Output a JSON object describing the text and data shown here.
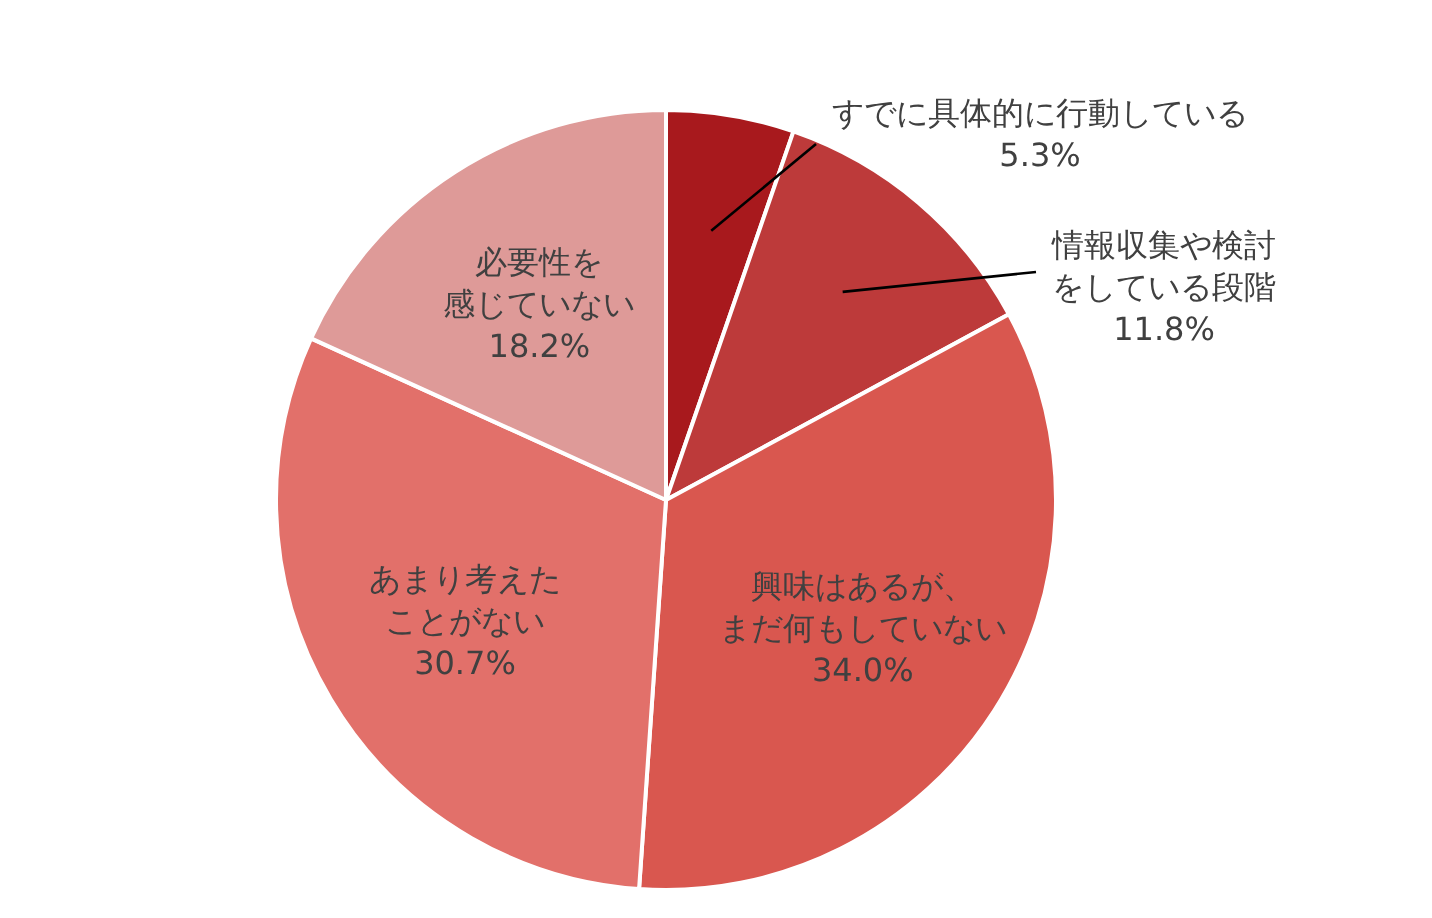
{
  "chart_data": {
    "type": "pie",
    "categories": [
      "すでに具体的に行動している",
      "情報収集や検討をしている段階",
      "興味はあるが、まだ何もしていない",
      "あまり考えたことがない",
      "必要性を感じていない"
    ],
    "values": [
      5.3,
      11.8,
      34.0,
      30.7,
      18.2
    ],
    "value_labels": [
      "5.3%",
      "11.8%",
      "34.0%",
      "30.7%",
      "18.2%"
    ],
    "colors": [
      "#a8191d",
      "#bd3a3a",
      "#d9574f",
      "#e2706a",
      "#de9a98"
    ],
    "legend": false
  }
}
